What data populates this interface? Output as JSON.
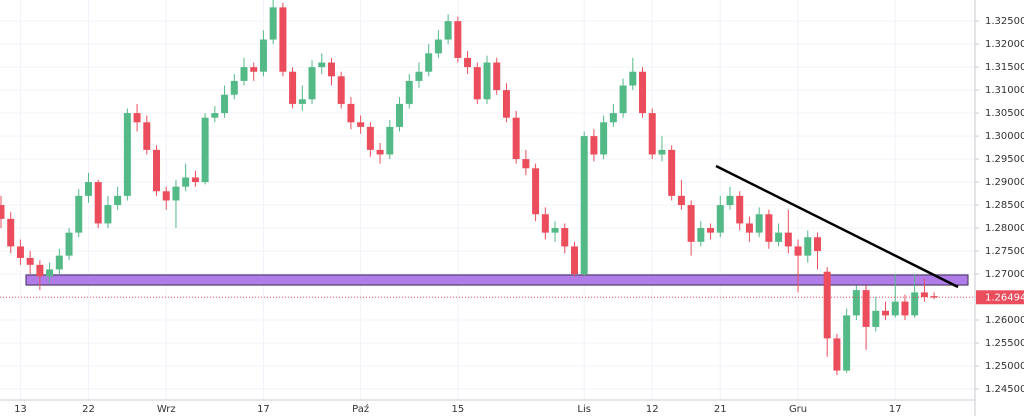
{
  "chart_data": {
    "type": "candlestick",
    "categories": [
      null,
      null,
      "13",
      null,
      null,
      null,
      null,
      null,
      null,
      "22",
      null,
      null,
      null,
      null,
      null,
      null,
      null,
      "Wrz",
      null,
      null,
      null,
      null,
      null,
      null,
      null,
      null,
      null,
      "17",
      null,
      null,
      null,
      null,
      null,
      null,
      null,
      null,
      null,
      "Paź",
      null,
      null,
      null,
      null,
      null,
      null,
      null,
      null,
      null,
      "15",
      null,
      null,
      null,
      null,
      null,
      null,
      null,
      null,
      null,
      null,
      null,
      null,
      "Lis",
      null,
      null,
      null,
      null,
      null,
      null,
      "12",
      null,
      null,
      null,
      null,
      null,
      null,
      "21",
      null,
      null,
      null,
      null,
      null,
      null,
      null,
      "Gru",
      null,
      null,
      null,
      null,
      null,
      null,
      null,
      null,
      null,
      "17",
      null,
      null,
      null,
      null
    ],
    "open": [
      1.285,
      1.282,
      1.276,
      1.2735,
      1.272,
      1.2695,
      1.271,
      1.274,
      1.279,
      1.287,
      1.29,
      1.281,
      1.285,
      1.287,
      1.305,
      1.303,
      1.297,
      1.288,
      1.286,
      1.289,
      1.291,
      1.29,
      1.304,
      1.305,
      1.309,
      1.312,
      1.315,
      1.314,
      1.321,
      1.328,
      1.314,
      1.307,
      1.308,
      1.315,
      1.316,
      1.313,
      1.307,
      1.303,
      1.302,
      1.297,
      1.296,
      1.302,
      1.307,
      1.312,
      1.314,
      1.318,
      1.321,
      1.325,
      1.317,
      1.315,
      1.308,
      1.316,
      1.31,
      1.304,
      1.295,
      1.293,
      1.283,
      1.279,
      1.28,
      1.276,
      1.27,
      1.3,
      1.296,
      1.303,
      1.305,
      1.311,
      1.314,
      1.305,
      1.296,
      1.297,
      1.287,
      1.285,
      1.277,
      1.28,
      1.279,
      1.285,
      1.287,
      1.281,
      1.279,
      1.283,
      1.277,
      1.279,
      1.276,
      1.274,
      1.278,
      1.2705,
      1.256,
      1.249,
      1.261,
      1.2665,
      1.2585,
      1.262,
      1.261,
      1.264,
      1.261,
      1.266,
      1.2652
    ],
    "high": [
      1.287,
      1.2835,
      1.2775,
      1.275,
      1.273,
      1.2725,
      1.2755,
      1.28,
      1.2885,
      1.292,
      1.2905,
      1.287,
      1.289,
      1.306,
      1.307,
      1.3045,
      1.298,
      1.289,
      1.2905,
      1.294,
      1.2925,
      1.305,
      1.3065,
      1.311,
      1.3135,
      1.317,
      1.316,
      1.323,
      1.33,
      1.329,
      1.315,
      1.311,
      1.3165,
      1.318,
      1.317,
      1.314,
      1.3085,
      1.3045,
      1.303,
      1.2985,
      1.3035,
      1.3085,
      1.3135,
      1.316,
      1.32,
      1.323,
      1.3265,
      1.326,
      1.3185,
      1.316,
      1.3175,
      1.317,
      1.3115,
      1.3055,
      1.297,
      1.294,
      1.2845,
      1.2815,
      1.281,
      1.277,
      1.301,
      1.3015,
      1.3045,
      1.307,
      1.3125,
      1.317,
      1.315,
      1.306,
      1.3,
      1.298,
      1.2905,
      1.286,
      1.2815,
      1.281,
      1.287,
      1.289,
      1.288,
      1.2825,
      1.2845,
      1.284,
      1.281,
      1.284,
      1.2775,
      1.2795,
      1.279,
      1.2715,
      1.257,
      1.2625,
      1.2675,
      1.2675,
      1.265,
      1.264,
      1.27,
      1.2655,
      1.27,
      1.269,
      1.266
    ],
    "low": [
      1.28,
      1.2745,
      1.272,
      1.27,
      1.2665,
      1.268,
      1.27,
      1.273,
      1.278,
      1.2855,
      1.28,
      1.28,
      1.284,
      1.286,
      1.301,
      1.296,
      1.287,
      1.284,
      1.28,
      1.288,
      1.289,
      1.2895,
      1.303,
      1.304,
      1.308,
      1.311,
      1.312,
      1.313,
      1.32,
      1.313,
      1.306,
      1.3055,
      1.307,
      1.3135,
      1.311,
      1.306,
      1.3015,
      1.3005,
      1.2955,
      1.294,
      1.295,
      1.301,
      1.306,
      1.3105,
      1.313,
      1.317,
      1.32,
      1.316,
      1.3135,
      1.307,
      1.307,
      1.309,
      1.303,
      1.294,
      1.2915,
      1.2815,
      1.2775,
      1.277,
      1.2745,
      1.2695,
      1.2695,
      1.2945,
      1.295,
      1.302,
      1.304,
      1.31,
      1.304,
      1.295,
      1.2945,
      1.286,
      1.284,
      1.274,
      1.276,
      1.2775,
      1.278,
      1.284,
      1.2795,
      1.277,
      1.278,
      1.2755,
      1.276,
      1.2745,
      1.266,
      1.2725,
      1.271,
      1.252,
      1.248,
      1.2485,
      1.26,
      1.2535,
      1.2575,
      1.26,
      1.2605,
      1.26,
      1.2605,
      1.264,
      1.2645
    ],
    "close": [
      1.282,
      1.276,
      1.2735,
      1.272,
      1.2695,
      1.271,
      1.274,
      1.279,
      1.287,
      1.29,
      1.281,
      1.285,
      1.287,
      1.305,
      1.303,
      1.297,
      1.288,
      1.286,
      1.289,
      1.291,
      1.29,
      1.304,
      1.305,
      1.309,
      1.312,
      1.315,
      1.314,
      1.321,
      1.328,
      1.314,
      1.307,
      1.308,
      1.315,
      1.316,
      1.313,
      1.307,
      1.303,
      1.302,
      1.297,
      1.296,
      1.302,
      1.307,
      1.312,
      1.314,
      1.318,
      1.321,
      1.325,
      1.317,
      1.315,
      1.308,
      1.316,
      1.31,
      1.304,
      1.295,
      1.293,
      1.283,
      1.279,
      1.28,
      1.276,
      1.27,
      1.3,
      1.296,
      1.303,
      1.305,
      1.311,
      1.314,
      1.305,
      1.296,
      1.297,
      1.287,
      1.285,
      1.277,
      1.28,
      1.279,
      1.285,
      1.287,
      1.281,
      1.279,
      1.283,
      1.277,
      1.279,
      1.276,
      1.274,
      1.278,
      1.275,
      1.256,
      1.249,
      1.261,
      1.2665,
      1.2585,
      1.262,
      1.261,
      1.264,
      1.261,
      1.266,
      1.265,
      1.2649
    ],
    "up_color": "#53b987",
    "down_color": "#eb4d5c",
    "ylim": [
      1.2426,
      1.3296
    ],
    "yticks": [
      {
        "value": 1.245,
        "label": "1.24500"
      },
      {
        "value": 1.25,
        "label": "1.25000"
      },
      {
        "value": 1.255,
        "label": "1.25500"
      },
      {
        "value": 1.26,
        "label": "1.26000"
      },
      {
        "value": 1.265,
        "label": "1.26500"
      },
      {
        "value": 1.27,
        "label": "1.27000"
      },
      {
        "value": 1.275,
        "label": "1.27500"
      },
      {
        "value": 1.28,
        "label": "1.28000"
      },
      {
        "value": 1.285,
        "label": "1.28500"
      },
      {
        "value": 1.29,
        "label": "1.29000"
      },
      {
        "value": 1.295,
        "label": "1.29500"
      },
      {
        "value": 1.3,
        "label": "1.30000"
      },
      {
        "value": 1.305,
        "label": "1.30500"
      },
      {
        "value": 1.31,
        "label": "1.31000"
      },
      {
        "value": 1.315,
        "label": "1.31500"
      },
      {
        "value": 1.32,
        "label": "1.32000"
      },
      {
        "value": 1.325,
        "label": "1.32500"
      }
    ],
    "last_price": 1.26494,
    "zone": {
      "low": 1.2676,
      "high": 1.2698,
      "color": "#b07ce8"
    },
    "grid": true
  }
}
